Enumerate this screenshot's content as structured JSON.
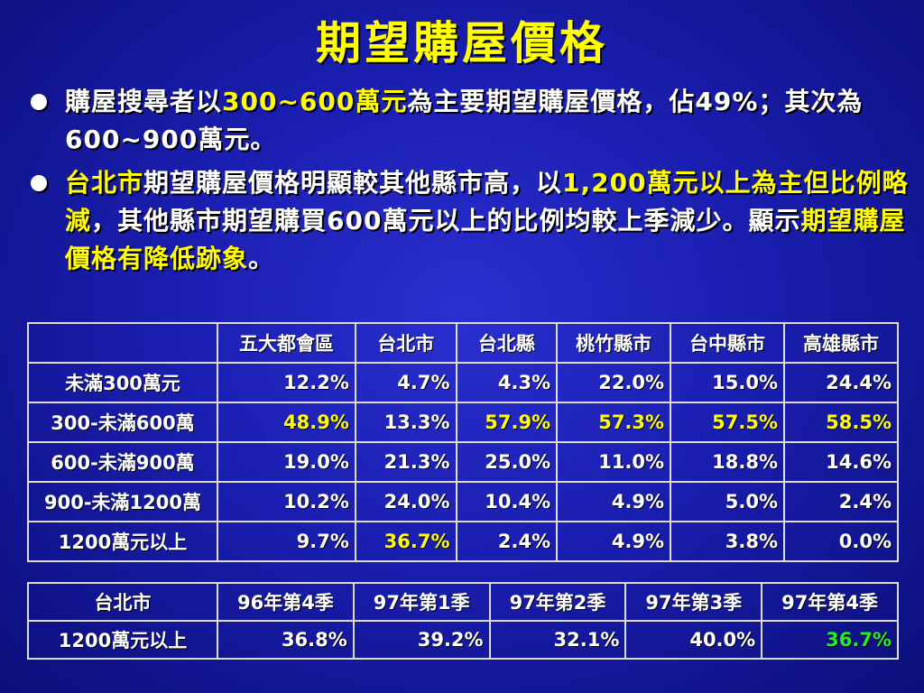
{
  "title": "期望購屋價格",
  "bullet1": {
    "a": "購屋搜尋者以",
    "b": "300~600萬元",
    "c": "為主要期望購屋價格，佔49%；其次為600~900萬元。"
  },
  "bullet2": {
    "a": "台北市",
    "b": "期望購屋價格明顯較其他縣市高，以",
    "c": "1,200萬元以上為主但比例略減",
    "d": "，其他縣市期望購買600萬元以上的比例均較上季減少。顯示",
    "e": "期望購屋價格有降低跡象",
    "f": "。"
  },
  "table1": {
    "headers": [
      "",
      "五大都會區",
      "台北市",
      "台北縣",
      "桃竹縣市",
      "台中縣市",
      "高雄縣市"
    ],
    "rows": [
      [
        "未滿300萬元",
        "12.2%",
        "4.7%",
        "4.3%",
        "22.0%",
        "15.0%",
        "24.4%"
      ],
      [
        "300-未滿600萬",
        "48.9%",
        "13.3%",
        "57.9%",
        "57.3%",
        "57.5%",
        "58.5%"
      ],
      [
        "600-未滿900萬",
        "19.0%",
        "21.3%",
        "25.0%",
        "11.0%",
        "18.8%",
        "14.6%"
      ],
      [
        "900-未滿1200萬",
        "10.2%",
        "24.0%",
        "10.4%",
        "4.9%",
        "5.0%",
        "2.4%"
      ],
      [
        "1200萬元以上",
        "9.7%",
        "36.7%",
        "2.4%",
        "4.9%",
        "3.8%",
        "0.0%"
      ]
    ]
  },
  "table2": {
    "headers": [
      "台北市",
      "96年第4季",
      "97年第1季",
      "97年第2季",
      "97年第3季",
      "97年第4季"
    ],
    "row": [
      "1200萬元以上",
      "36.8%",
      "39.2%",
      "32.1%",
      "40.0%",
      "36.7%"
    ]
  },
  "colors": {
    "highlight": "#ffff00",
    "green": "#22ee22",
    "background": "#1a1eb0"
  }
}
